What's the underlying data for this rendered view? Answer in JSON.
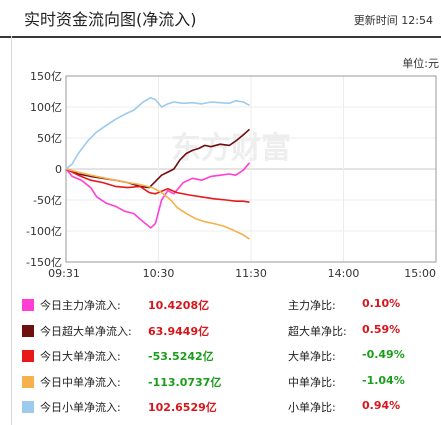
{
  "header": {
    "title": "实时资金流向图(净流入)",
    "updated_label": "更新时间",
    "updated_time": "12:54",
    "unit": "单位:元"
  },
  "watermark": "东方财富",
  "chart_data": {
    "type": "line",
    "x_ticks": [
      "09:31",
      "10:30",
      "11:30",
      "14:00",
      "15:00"
    ],
    "y_ticks": [
      "150亿",
      "100亿",
      "50亿",
      "0",
      "-50亿",
      "-100亿",
      "-150亿"
    ],
    "ylim": [
      -150,
      150
    ],
    "y_unit": "亿",
    "grid": true,
    "series": [
      {
        "name": "今日主力净流入",
        "color": "#ff3fd5",
        "points": [
          [
            0,
            0
          ],
          [
            4,
            -12
          ],
          [
            10,
            -18
          ],
          [
            16,
            -30
          ],
          [
            20,
            -45
          ],
          [
            26,
            -55
          ],
          [
            32,
            -60
          ],
          [
            38,
            -68
          ],
          [
            44,
            -72
          ],
          [
            50,
            -85
          ],
          [
            55,
            -95
          ],
          [
            58,
            -88
          ],
          [
            62,
            -50
          ],
          [
            66,
            -35
          ],
          [
            70,
            -40
          ],
          [
            76,
            -22
          ],
          [
            82,
            -15
          ],
          [
            88,
            -18
          ],
          [
            94,
            -12
          ],
          [
            100,
            -10
          ],
          [
            106,
            -8
          ],
          [
            110,
            -10
          ],
          [
            115,
            -2
          ],
          [
            119,
            10
          ]
        ]
      },
      {
        "name": "今日超大单净流入",
        "color": "#6e0f10",
        "points": [
          [
            0,
            0
          ],
          [
            8,
            -8
          ],
          [
            16,
            -12
          ],
          [
            24,
            -15
          ],
          [
            32,
            -18
          ],
          [
            40,
            -22
          ],
          [
            48,
            -28
          ],
          [
            54,
            -30
          ],
          [
            58,
            -20
          ],
          [
            62,
            -10
          ],
          [
            66,
            -5
          ],
          [
            70,
            0
          ],
          [
            74,
            15
          ],
          [
            78,
            25
          ],
          [
            82,
            30
          ],
          [
            86,
            33
          ],
          [
            90,
            38
          ],
          [
            94,
            36
          ],
          [
            100,
            40
          ],
          [
            106,
            38
          ],
          [
            110,
            45
          ],
          [
            115,
            55
          ],
          [
            119,
            64
          ]
        ]
      },
      {
        "name": "今日大单净流入",
        "color": "#e8191a",
        "points": [
          [
            0,
            0
          ],
          [
            8,
            -10
          ],
          [
            16,
            -18
          ],
          [
            24,
            -22
          ],
          [
            32,
            -28
          ],
          [
            40,
            -30
          ],
          [
            48,
            -28
          ],
          [
            54,
            -38
          ],
          [
            58,
            -40
          ],
          [
            62,
            -36
          ],
          [
            66,
            -32
          ],
          [
            72,
            -38
          ],
          [
            80,
            -42
          ],
          [
            88,
            -45
          ],
          [
            96,
            -48
          ],
          [
            104,
            -50
          ],
          [
            110,
            -52
          ],
          [
            115,
            -52
          ],
          [
            119,
            -53.5
          ]
        ]
      },
      {
        "name": "今日中单净流入",
        "color": "#f6b04c",
        "points": [
          [
            0,
            0
          ],
          [
            8,
            -5
          ],
          [
            16,
            -10
          ],
          [
            24,
            -14
          ],
          [
            32,
            -18
          ],
          [
            40,
            -22
          ],
          [
            48,
            -25
          ],
          [
            56,
            -30
          ],
          [
            62,
            -38
          ],
          [
            68,
            -50
          ],
          [
            72,
            -62
          ],
          [
            78,
            -72
          ],
          [
            84,
            -80
          ],
          [
            90,
            -85
          ],
          [
            96,
            -88
          ],
          [
            102,
            -92
          ],
          [
            108,
            -98
          ],
          [
            114,
            -105
          ],
          [
            119,
            -113
          ]
        ]
      },
      {
        "name": "今日小单净流入",
        "color": "#9ccbee",
        "points": [
          [
            0,
            0
          ],
          [
            4,
            8
          ],
          [
            8,
            25
          ],
          [
            14,
            45
          ],
          [
            20,
            60
          ],
          [
            26,
            70
          ],
          [
            32,
            80
          ],
          [
            38,
            88
          ],
          [
            44,
            95
          ],
          [
            50,
            108
          ],
          [
            55,
            115
          ],
          [
            58,
            112
          ],
          [
            62,
            100
          ],
          [
            66,
            105
          ],
          [
            70,
            108
          ],
          [
            76,
            106
          ],
          [
            82,
            107
          ],
          [
            88,
            105
          ],
          [
            94,
            108
          ],
          [
            100,
            107
          ],
          [
            106,
            106
          ],
          [
            110,
            110
          ],
          [
            115,
            108
          ],
          [
            119,
            102.7
          ]
        ]
      }
    ]
  },
  "legend": [
    {
      "label": "今日主力净流入:",
      "value": "10.4208亿",
      "sign": "pos",
      "color": "#ff3fd5",
      "ratio_label": "主力净比:",
      "ratio": "0.10%",
      "ratio_sign": "pos"
    },
    {
      "label": "今日超大单净流入:",
      "value": "63.9449亿",
      "sign": "pos",
      "color": "#6e0f10",
      "ratio_label": "超大单净比:",
      "ratio": "0.59%",
      "ratio_sign": "pos"
    },
    {
      "label": "今日大单净流入:",
      "value": "-53.5242亿",
      "sign": "neg",
      "color": "#e8191a",
      "ratio_label": "大单净比:",
      "ratio": "-0.49%",
      "ratio_sign": "neg"
    },
    {
      "label": "今日中单净流入:",
      "value": "-113.0737亿",
      "sign": "neg",
      "color": "#f6b04c",
      "ratio_label": "中单净比:",
      "ratio": "-1.04%",
      "ratio_sign": "neg"
    },
    {
      "label": "今日小单净流入:",
      "value": "102.6529亿",
      "sign": "pos",
      "color": "#9ccbee",
      "ratio_label": "小单净比:",
      "ratio": "0.94%",
      "ratio_sign": "pos"
    }
  ]
}
